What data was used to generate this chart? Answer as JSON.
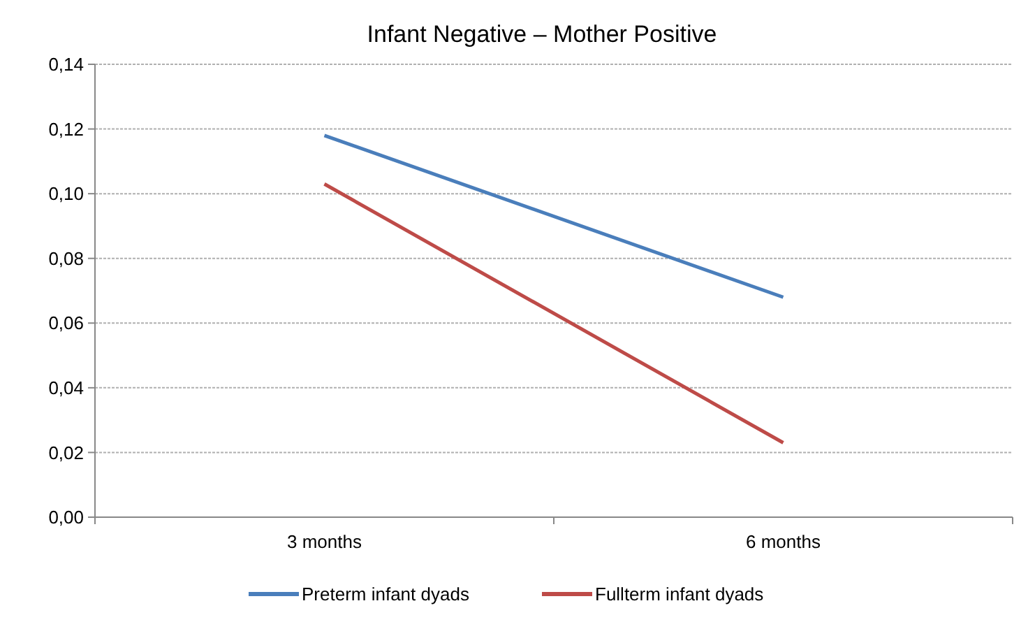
{
  "chart_data": {
    "type": "line",
    "title": "Infant Negative – Mother Positive",
    "categories": [
      "3 months",
      "6 months"
    ],
    "series": [
      {
        "name": "Preterm infant dyads",
        "color": "#4a7ebb",
        "values": [
          0.118,
          0.068
        ]
      },
      {
        "name": "Fullterm infant dyads",
        "color": "#be4b48",
        "values": [
          0.103,
          0.023
        ]
      }
    ],
    "ylim": [
      0,
      0.14
    ],
    "yticks": [
      {
        "value": 0,
        "label": "0,00"
      },
      {
        "value": 0.02,
        "label": "0,02"
      },
      {
        "value": 0.04,
        "label": "0,04"
      },
      {
        "value": 0.06,
        "label": "0,06"
      },
      {
        "value": 0.08,
        "label": "0,08"
      },
      {
        "value": 0.1,
        "label": "0,10"
      },
      {
        "value": 0.12,
        "label": "0,12"
      },
      {
        "value": 0.14,
        "label": "0,14"
      }
    ],
    "grid": "y",
    "legend": "bottom",
    "marker": "none",
    "line_style": "solid"
  }
}
